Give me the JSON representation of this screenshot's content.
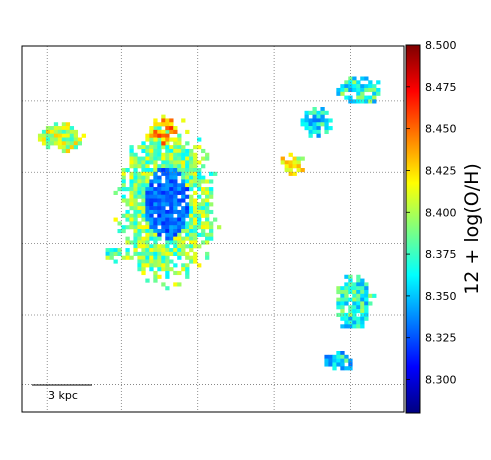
{
  "chart_data": {
    "type": "heatmap",
    "title": "",
    "xlabel": "",
    "ylabel": "",
    "colormap": "jet",
    "grid": "dotted",
    "colorbar": {
      "label": "12 + log(O/H)",
      "range": [
        8.28,
        8.5
      ],
      "ticks": [
        "8.300",
        "8.325",
        "8.350",
        "8.375",
        "8.400",
        "8.425",
        "8.450",
        "8.475",
        "8.500"
      ]
    },
    "scalebar_label": "3 kpc",
    "regions": [
      {
        "name": "central complex",
        "cx": 0.38,
        "cy": 0.43,
        "rx": 0.13,
        "ry": 0.22,
        "value": 8.39,
        "core_value": 8.33
      },
      {
        "name": "upper-left knot",
        "cx": 0.1,
        "cy": 0.25,
        "rx": 0.06,
        "ry": 0.04,
        "value": 8.4
      },
      {
        "name": "upper-center knot",
        "cx": 0.37,
        "cy": 0.23,
        "rx": 0.04,
        "ry": 0.04,
        "value": 8.44
      },
      {
        "name": "upper-right knot",
        "cx": 0.88,
        "cy": 0.12,
        "rx": 0.06,
        "ry": 0.04,
        "value": 8.37
      },
      {
        "name": "right-mid knot",
        "cx": 0.77,
        "cy": 0.21,
        "rx": 0.04,
        "ry": 0.04,
        "value": 8.36
      },
      {
        "name": "right-upper-mid knot",
        "cx": 0.71,
        "cy": 0.32,
        "rx": 0.03,
        "ry": 0.03,
        "value": 8.41
      },
      {
        "name": "lower-right complex",
        "cx": 0.87,
        "cy": 0.7,
        "rx": 0.05,
        "ry": 0.08,
        "value": 8.37
      },
      {
        "name": "lower-right knot",
        "cx": 0.83,
        "cy": 0.86,
        "rx": 0.04,
        "ry": 0.03,
        "value": 8.36
      },
      {
        "name": "left small knot",
        "cx": 0.24,
        "cy": 0.57,
        "rx": 0.03,
        "ry": 0.02,
        "value": 8.38
      }
    ]
  }
}
